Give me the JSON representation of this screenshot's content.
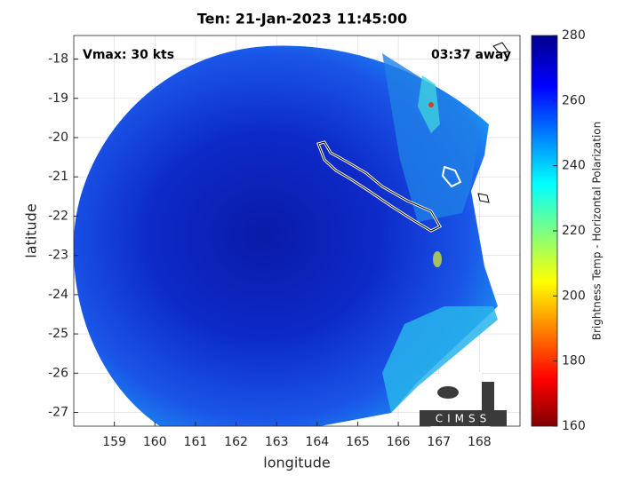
{
  "title": "Ten: 21-Jan-2023 11:45:00",
  "annotations": {
    "vmax": "Vmax: 30 kts",
    "away": "03:37 away"
  },
  "x_axis": {
    "label": "longitude",
    "lim": [
      158,
      169
    ],
    "ticks": [
      159,
      160,
      161,
      162,
      163,
      164,
      165,
      166,
      167,
      168
    ]
  },
  "y_axis": {
    "label": "latitude",
    "lim": [
      -27.35,
      -17.4
    ],
    "ticks": [
      -18,
      -19,
      -20,
      -21,
      -22,
      -23,
      -24,
      -25,
      -26,
      -27
    ]
  },
  "colorbar": {
    "label": "Brightness Temp - Horizontal Polarization",
    "lim": [
      160,
      280
    ],
    "ticks": [
      160,
      180,
      200,
      220,
      240,
      260,
      280
    ],
    "colormap": "jet"
  },
  "logo": "CIMSS"
}
